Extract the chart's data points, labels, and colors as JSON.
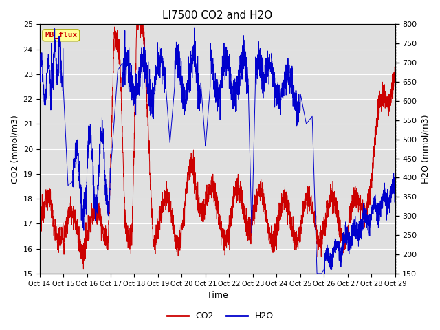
{
  "title": "LI7500 CO2 and H2O",
  "xlabel": "Time",
  "ylabel_left": "CO2 (mmol/m3)",
  "ylabel_right": "H2O (mmol/m3)",
  "ylim_left": [
    15.0,
    25.0
  ],
  "ylim_right": [
    150,
    800
  ],
  "yticks_left": [
    15.0,
    16.0,
    17.0,
    18.0,
    19.0,
    20.0,
    21.0,
    22.0,
    23.0,
    24.0,
    25.0
  ],
  "yticks_right": [
    150,
    200,
    250,
    300,
    350,
    400,
    450,
    500,
    550,
    600,
    650,
    700,
    750,
    800
  ],
  "x_tick_labels": [
    "Oct 14",
    "Oct 15",
    "Oct 16",
    "Oct 17",
    "Oct 18",
    "Oct 19",
    "Oct 20",
    "Oct 21",
    "Oct 22",
    "Oct 23",
    "Oct 24",
    "Oct 25",
    "Oct 26",
    "Oct 27",
    "Oct 28",
    "Oct 29"
  ],
  "num_ticks": 16,
  "co2_color": "#cc0000",
  "h2o_color": "#0000cc",
  "bg_color": "#e0e0e0",
  "annotation_text": "MB_flux",
  "annotation_color": "#cc0000",
  "annotation_bg": "#ffff99",
  "legend_co2": "CO2",
  "legend_h2o": "H2O",
  "title_fontsize": 11,
  "axis_label_fontsize": 9,
  "tick_fontsize": 8
}
